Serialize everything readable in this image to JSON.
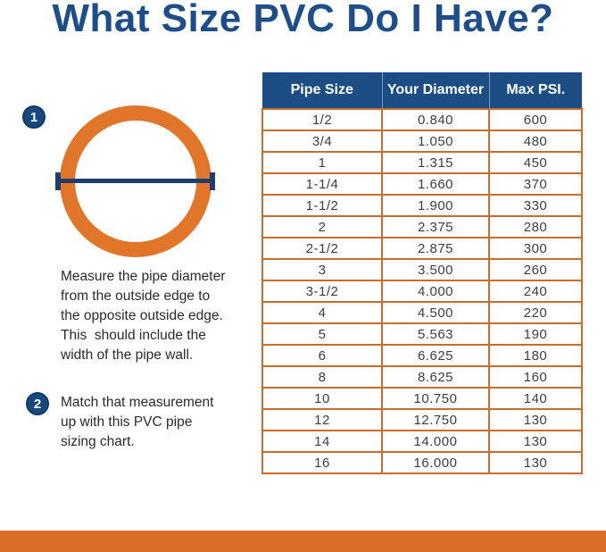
{
  "title": "What Size PVC Do I Have?",
  "steps": [
    {
      "number": "1",
      "text": "Measure the pipe diameter\nfrom the outside edge to\nthe opposite outside edge.\nThis  should include the\nwidth of the pipe wall."
    },
    {
      "number": "2",
      "text": "Match that measurement\nup with this PVC pipe\nsizing chart."
    }
  ],
  "chart_data": {
    "type": "table",
    "columns": [
      "Pipe Size",
      "Your Diameter",
      "Max PSI."
    ],
    "rows": [
      [
        "1/2",
        "0.840",
        "600"
      ],
      [
        "3/4",
        "1.050",
        "480"
      ],
      [
        "1",
        "1.315",
        "450"
      ],
      [
        "1-1/4",
        "1.660",
        "370"
      ],
      [
        "1-1/2",
        "1.900",
        "330"
      ],
      [
        "2",
        "2.375",
        "280"
      ],
      [
        "2-1/2",
        "2.875",
        "300"
      ],
      [
        "3",
        "3.500",
        "260"
      ],
      [
        "3-1/2",
        "4.000",
        "240"
      ],
      [
        "4",
        "4.500",
        "220"
      ],
      [
        "5",
        "5.563",
        "190"
      ],
      [
        "6",
        "6.625",
        "180"
      ],
      [
        "8",
        "8.625",
        "160"
      ],
      [
        "10",
        "10.750",
        "140"
      ],
      [
        "12",
        "12.750",
        "130"
      ],
      [
        "14",
        "14.000",
        "130"
      ],
      [
        "16",
        "16.000",
        "130"
      ]
    ]
  },
  "colors": {
    "title_blue": "#1d4e89",
    "header_blue": "#1c4d85",
    "badge_blue": "#17497f",
    "diameter_line_navy": "#1d3e6e",
    "pipe_ring_orange": "#e1762b",
    "table_border_orange": "#cc6c2c",
    "bottom_bar_orange": "#d96e28"
  }
}
